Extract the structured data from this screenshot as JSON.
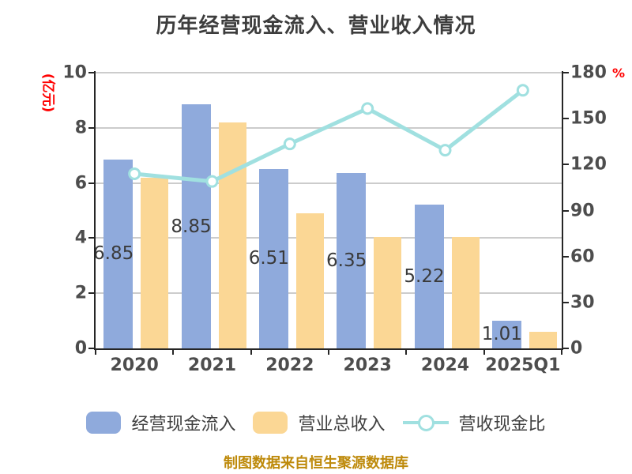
{
  "title": "历年经营现金流入、营业收入情况",
  "left_axis": {
    "unit_label": "(亿元)",
    "ticks": [
      10,
      8,
      6,
      4,
      2,
      0
    ],
    "range": [
      0,
      10
    ]
  },
  "right_axis": {
    "unit_label": "%",
    "ticks": [
      180,
      150,
      120,
      90,
      60,
      30,
      0
    ],
    "range": [
      0,
      180
    ]
  },
  "chart_data": {
    "type": "bar",
    "categories": [
      "2020",
      "2021",
      "2022",
      "2023",
      "2024",
      "2025Q1"
    ],
    "series": [
      {
        "name": "经营现金流入",
        "type": "bar",
        "axis": "left",
        "color": "#8FAADC",
        "values": [
          6.85,
          8.85,
          6.51,
          6.35,
          5.22,
          1.01
        ],
        "labels": [
          "6.85",
          "8.85",
          "6.51",
          "6.35",
          "5.22",
          "1.01"
        ]
      },
      {
        "name": "营业总收入",
        "type": "bar",
        "axis": "left",
        "color": "#FBD795",
        "values": [
          6.2,
          8.2,
          4.9,
          4.05,
          4.05,
          0.6
        ]
      },
      {
        "name": "营收现金比",
        "type": "line",
        "axis": "right",
        "color": "#A0E0E0",
        "marker_fill": "#FFFFFF",
        "values": [
          114,
          109,
          133.5,
          156.6,
          129.4,
          168.5
        ]
      }
    ],
    "left_ylim": [
      0,
      10
    ],
    "right_ylim": [
      0,
      180
    ],
    "grid": true,
    "legend_position": "bottom",
    "title": "历年经营现金流入、营业收入情况",
    "xlabel": "",
    "ylabel_left": "(亿元)",
    "ylabel_right": "%"
  },
  "legend": {
    "items": [
      {
        "label": "经营现金流入",
        "swatch": "blue-rounded-rect"
      },
      {
        "label": "营业总收入",
        "swatch": "orange-rounded-rect"
      },
      {
        "label": "营收现金比",
        "swatch": "teal-line-with-circle-marker"
      }
    ]
  },
  "source_note": "制图数据来自恒生聚源数据库",
  "colors": {
    "bar_cash": "#8FAADC",
    "bar_revenue": "#FBD795",
    "ratio_line": "#A0E0E0",
    "marker_fill": "#FFFFFF",
    "title_text": "#3D3D3D",
    "axis_text": "#4D4D4D",
    "axis_line": "#262626",
    "gridline": "#CCCCCC",
    "unit_label_red": "#FF0000",
    "bar_label_text": "#3A3A3A",
    "source_text": "#BE8A0B"
  }
}
